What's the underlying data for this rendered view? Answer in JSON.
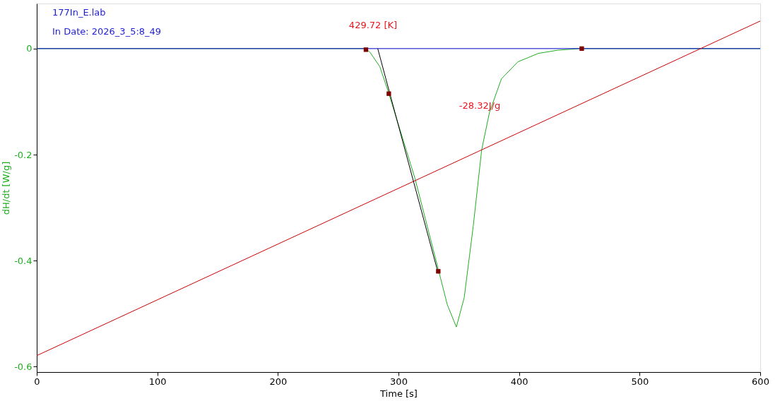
{
  "chart_data": {
    "type": "line",
    "xlabel": "Time [s]",
    "ylabel": "dH/dt [W/g]",
    "xlim": [
      0,
      600
    ],
    "ylim": [
      -0.61,
      0.085
    ],
    "xticks": [
      0,
      100,
      200,
      300,
      400,
      500,
      600
    ],
    "yticks": [
      0,
      -0.2,
      -0.4,
      -0.6
    ],
    "grid": false,
    "legend": false,
    "annotations": [
      "177In_E.lab",
      "In  Date: 2026_3_5:8_49",
      "429.72 [K]",
      "-28.32J/g"
    ],
    "series": [
      {
        "color": "#1fae1f",
        "x": [
          0,
          260,
          273,
          276.4,
          284.5,
          291.5,
          313.7,
          333,
          340.5,
          348,
          354.5,
          362,
          369,
          375.5,
          385.4,
          399,
          416,
          432,
          450,
          600
        ],
        "values": [
          0,
          0,
          0,
          -0.007,
          -0.034,
          -0.081,
          -0.245,
          -0.416,
          -0.483,
          -0.525,
          -0.47,
          -0.335,
          -0.191,
          -0.12,
          -0.057,
          -0.025,
          -0.009,
          -0.003,
          0,
          0
        ]
      },
      {
        "color": "#0000cc",
        "x": [
          0,
          600
        ],
        "values": [
          0,
          0
        ]
      },
      {
        "color": "#cc0000",
        "x": [
          0,
          600
        ],
        "values": [
          -0.579,
          0.052
        ]
      },
      {
        "color": "#000000",
        "x": [
          282.8,
          333
        ],
        "values": [
          0,
          -0.424
        ]
      },
      {
        "color": "#800000",
        "type": "scatter",
        "marker": "square",
        "x": [
          273,
          292,
          333,
          452
        ],
        "values": [
          -0.002,
          -0.085,
          -0.42,
          0
        ]
      }
    ]
  }
}
